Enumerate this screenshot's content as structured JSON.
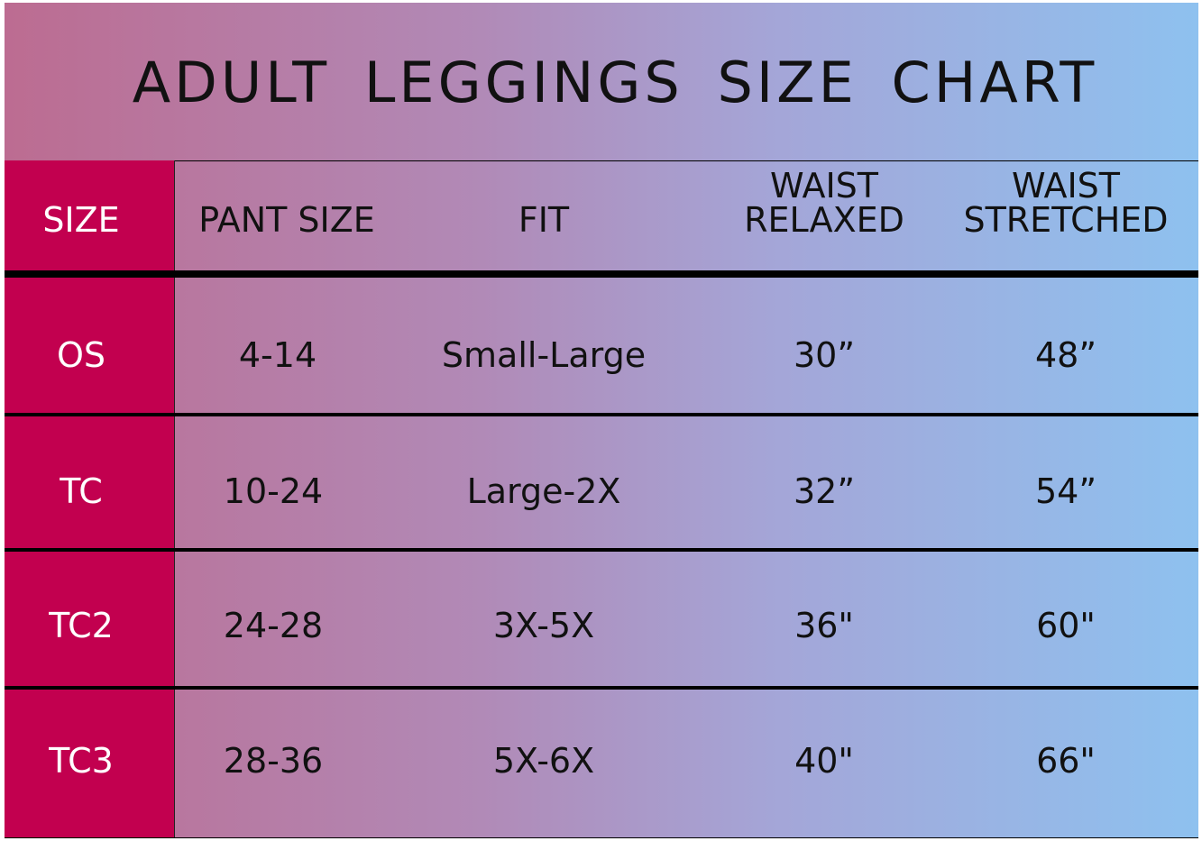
{
  "title": "ADULT  LEGGINGS  SIZE  CHART",
  "colors": {
    "size_column": "#c2004f",
    "gradient_left": "#bc6c91",
    "gradient_right": "#8ec1ef"
  },
  "headers": {
    "size": "SIZE",
    "pant_size": "PANT SIZE",
    "fit": "FIT",
    "waist_relaxed_1": "WAIST",
    "waist_relaxed_2": "RELAXED",
    "waist_stretched_1": "WAIST",
    "waist_stretched_2": "STRETCHED"
  },
  "rows": [
    {
      "size": "OS",
      "pant_size": "4-14",
      "fit": "Small-Large",
      "waist_relaxed": "30”",
      "waist_stretched": "48”"
    },
    {
      "size": "TC",
      "pant_size": "10-24",
      "fit": "Large-2X",
      "waist_relaxed": "32”",
      "waist_stretched": "54”"
    },
    {
      "size": "TC2",
      "pant_size": "24-28",
      "fit": "3X-5X",
      "waist_relaxed": "36\"",
      "waist_stretched": "60\""
    },
    {
      "size": "TC3",
      "pant_size": "28-36",
      "fit": "5X-6X",
      "waist_relaxed": "40\"",
      "waist_stretched": "66\""
    }
  ]
}
